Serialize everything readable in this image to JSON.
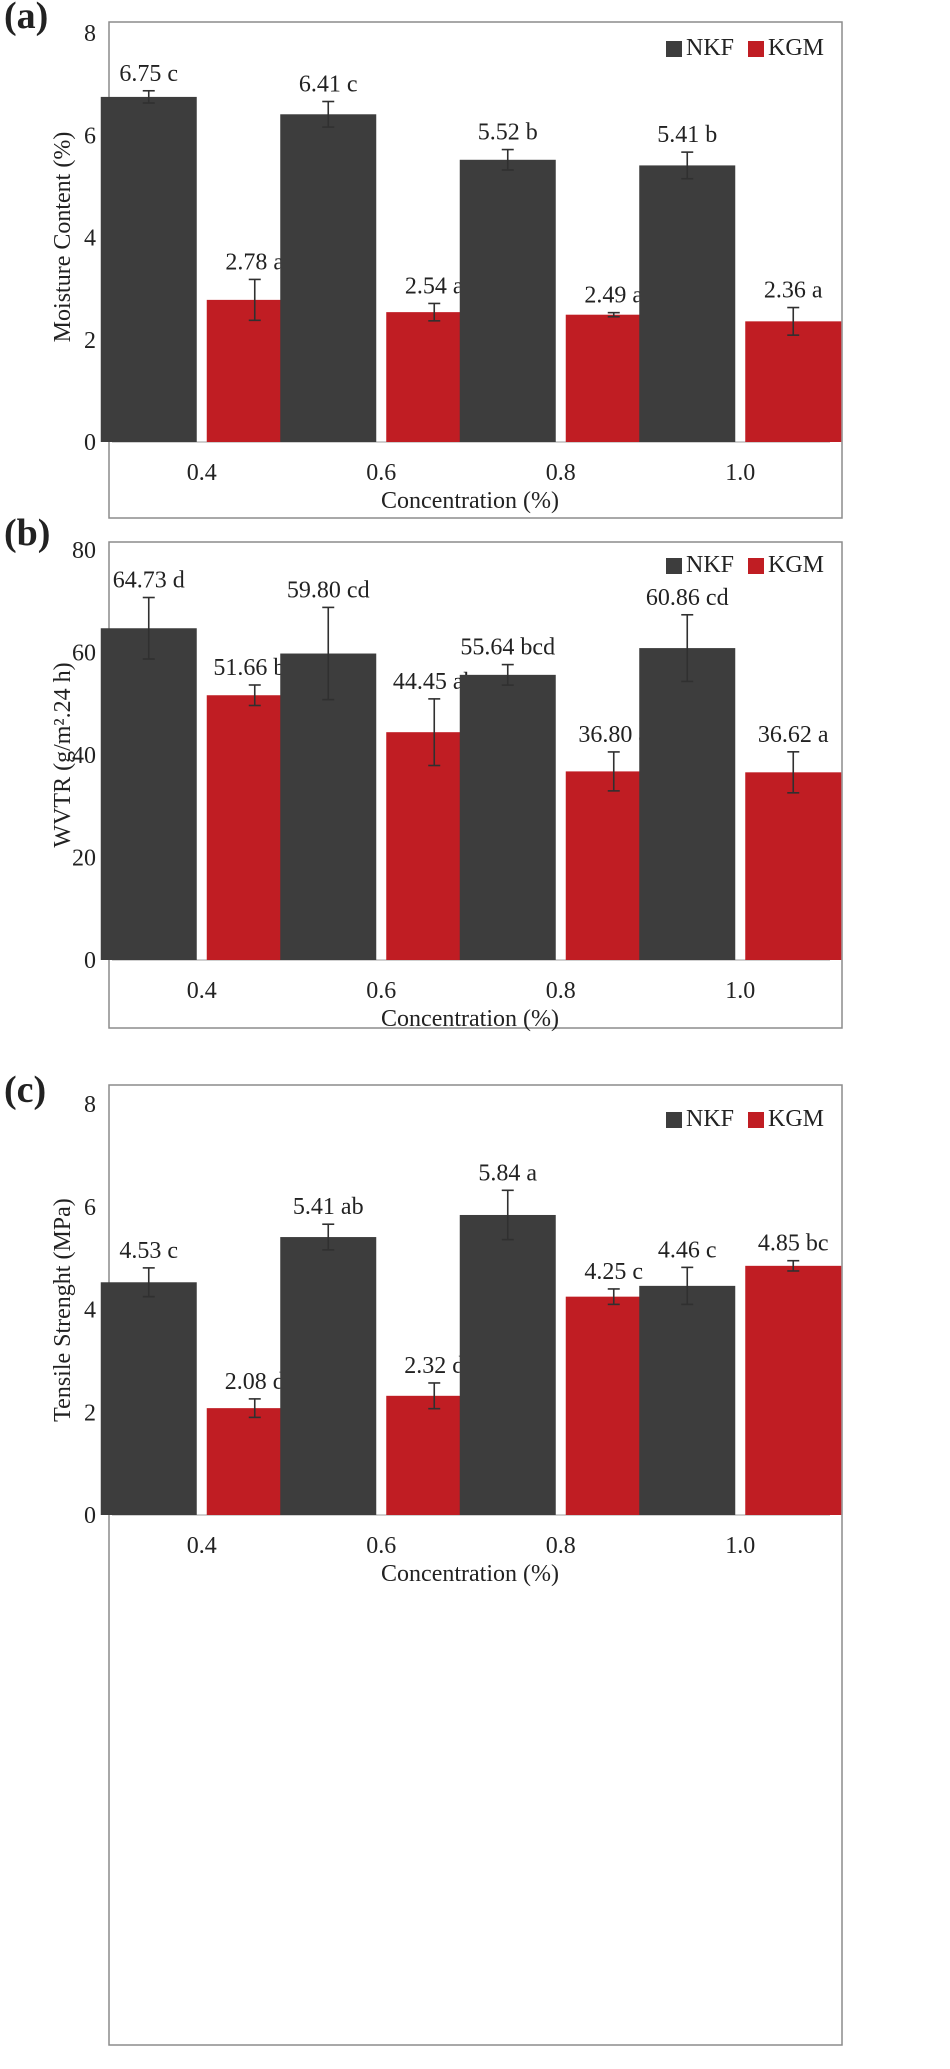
{
  "colors": {
    "NKF": "#3d3d3d",
    "KGM": "#c01d23",
    "grid": "#d9d9d9",
    "frame": "#8c8c8c",
    "error_bar": "#303030"
  },
  "chart_data": [
    {
      "panel": "(a)",
      "type": "bar",
      "categories": [
        "0.4",
        "0.6",
        "0.8",
        "1.0"
      ],
      "xlabel": "Concentration (%)",
      "ylabel": "Moisture Content (%)",
      "ylim": [
        0,
        8
      ],
      "yticks": [
        "0",
        "2",
        "4",
        "6",
        "8"
      ],
      "grid": false,
      "legend": "top-right",
      "series": [
        {
          "name": "NKF",
          "values": [
            6.75,
            6.41,
            5.52,
            5.41
          ],
          "errors": [
            0.12,
            0.25,
            0.2,
            0.26
          ],
          "labels": [
            "6.75 c",
            "6.41 c",
            "5.52 b",
            "5.41 b"
          ]
        },
        {
          "name": "KGM",
          "values": [
            2.78,
            2.54,
            2.49,
            2.36
          ],
          "errors": [
            0.4,
            0.17,
            0.04,
            0.27
          ],
          "labels": [
            "2.78 a",
            "2.54 a",
            "2.49 a",
            "2.36 a"
          ]
        }
      ]
    },
    {
      "panel": "(b)",
      "type": "bar",
      "categories": [
        "0.4",
        "0.6",
        "0.8",
        "1.0"
      ],
      "xlabel": "Concentration (%)",
      "ylabel": "WVTR (g/m².24 h)",
      "ylim": [
        0,
        80
      ],
      "yticks": [
        "0",
        "20",
        "40",
        "60",
        "80"
      ],
      "grid": false,
      "legend": "top-right",
      "series": [
        {
          "name": "NKF",
          "values": [
            64.73,
            59.8,
            55.64,
            60.86
          ],
          "errors": [
            6.0,
            9.0,
            2.0,
            6.5
          ],
          "labels": [
            "64.73 d",
            "59.80 cd",
            "55.64 bcd",
            "60.86 cd"
          ]
        },
        {
          "name": "KGM",
          "values": [
            51.66,
            44.45,
            36.8,
            36.62
          ],
          "errors": [
            2.0,
            6.5,
            3.8,
            4.0
          ],
          "labels": [
            "51.66 bc",
            "44.45 ab",
            "36.80 a",
            "36.62 a"
          ]
        }
      ]
    },
    {
      "panel": "(c)",
      "type": "bar",
      "categories": [
        "0.4",
        "0.6",
        "0.8",
        "1.0"
      ],
      "xlabel": "Concentration (%)",
      "ylabel": "Tensile Strenght (MPa)",
      "ylim": [
        0,
        8
      ],
      "yticks": [
        "0",
        "2",
        "4",
        "6",
        "8"
      ],
      "grid": false,
      "legend": "top-right",
      "series": [
        {
          "name": "NKF",
          "values": [
            4.53,
            5.41,
            5.84,
            4.46
          ],
          "errors": [
            0.28,
            0.25,
            0.48,
            0.36
          ],
          "labels": [
            "4.53 c",
            "5.41 ab",
            "5.84 a",
            "4.46 c"
          ]
        },
        {
          "name": "KGM",
          "values": [
            2.08,
            2.32,
            4.25,
            4.85
          ],
          "errors": [
            0.18,
            0.25,
            0.15,
            0.1
          ],
          "labels": [
            "2.08 d",
            "2.32 d",
            "4.25 c",
            "4.85 bc"
          ]
        }
      ]
    }
  ]
}
